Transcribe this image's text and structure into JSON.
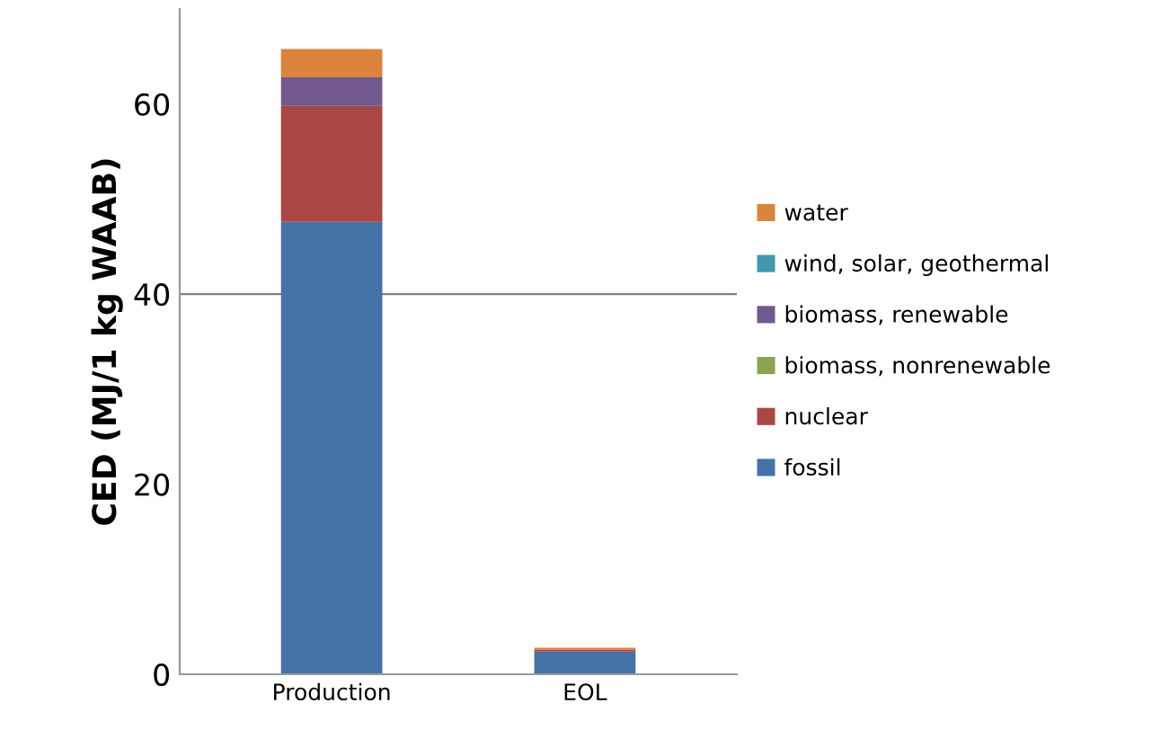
{
  "chart_data": {
    "type": "bar",
    "stacked": true,
    "ylabel": "CED (MJ/1 kg WAAB)",
    "categories": [
      "Production",
      "EOL"
    ],
    "series": [
      {
        "name": "fossil",
        "color": "#4572a7",
        "values": [
          47.6,
          2.4
        ]
      },
      {
        "name": "nuclear",
        "color": "#aa4643",
        "values": [
          12.2,
          0.2
        ]
      },
      {
        "name": "biomass, nonrenewable",
        "color": "#89a54e",
        "values": [
          0,
          0
        ]
      },
      {
        "name": "biomass, renewable",
        "color": "#71588f",
        "values": [
          3.0,
          0
        ]
      },
      {
        "name": "wind, solar, geothermal",
        "color": "#4198af",
        "values": [
          0,
          0
        ]
      },
      {
        "name": "water",
        "color": "#db843d",
        "values": [
          3.0,
          0.2
        ]
      }
    ],
    "ylim": [
      0,
      70
    ],
    "yticks": [
      0,
      20,
      40,
      60
    ],
    "grid": false,
    "legend": "right",
    "ref_lines": [
      {
        "axis": "y",
        "value": 40,
        "color": "#808080"
      }
    ]
  }
}
